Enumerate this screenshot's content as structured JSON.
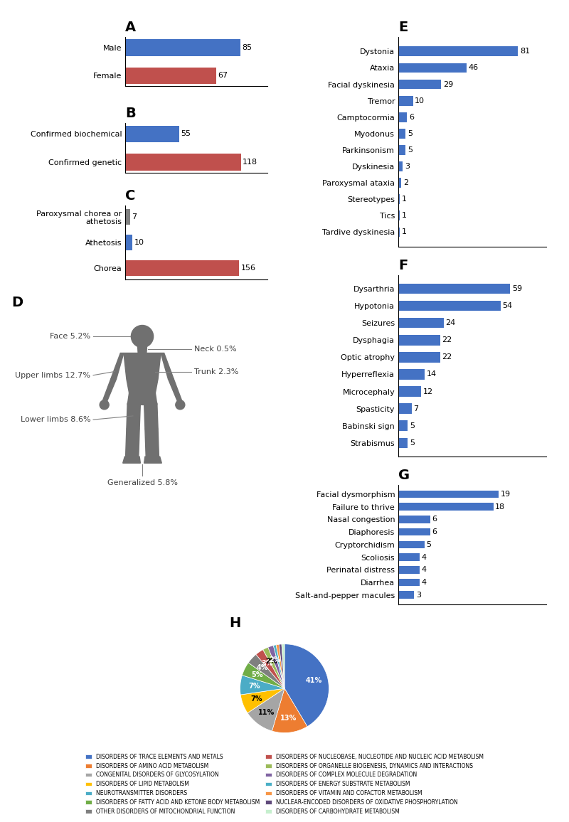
{
  "chart_data": [
    {
      "type": "bar",
      "title": "A",
      "orientation": "horizontal",
      "categories": [
        "Female",
        "Male"
      ],
      "values": [
        67,
        85
      ],
      "colors": [
        "#c0504d",
        "#4472c4"
      ],
      "xlim": [
        0,
        105
      ],
      "data_labels": true,
      "tick_labels": "y",
      "grid": false
    },
    {
      "type": "bar",
      "title": "B",
      "orientation": "horizontal",
      "categories": [
        "Confirmed genetic",
        "Confirmed biochemical"
      ],
      "values": [
        118,
        55
      ],
      "colors": [
        "#c0504d",
        "#4472c4"
      ],
      "xlim": [
        0,
        145
      ],
      "data_labels": true,
      "tick_labels": "y",
      "grid": false
    },
    {
      "type": "bar",
      "title": "C",
      "orientation": "horizontal",
      "categories": [
        "Chorea",
        "Athetosis",
        "Paroxysmal chorea or\nathetosis"
      ],
      "values": [
        156,
        10,
        7
      ],
      "colors": [
        "#c0504d",
        "#4472c4",
        "#808080"
      ],
      "xlim": [
        0,
        195
      ],
      "data_labels": true,
      "tick_labels": "y",
      "grid": false
    },
    {
      "type": "diagram",
      "title": "D",
      "color": "#707070",
      "annotations": [
        "Face 5.2%",
        "Neck 0.5%",
        "Upper limbs 12.7%",
        "Trunk 2.3%",
        "Lower limbs 8.6%",
        "Generalized 5.8%"
      ]
    },
    {
      "type": "bar",
      "title": "E",
      "orientation": "horizontal",
      "categories": [
        "Tardive dyskinesia",
        "Tics",
        "Stereotypes",
        "Paroxysmal ataxia",
        "Dyskinesia",
        "Parkinsonism",
        "Myodonus",
        "Camptocormia",
        "Tremor",
        "Facial dyskinesia",
        "Ataxia",
        "Dystonia"
      ],
      "values": [
        1,
        1,
        1,
        2,
        3,
        5,
        5,
        6,
        10,
        29,
        46,
        81
      ],
      "color": "#4472c4",
      "xlim": [
        0,
        100
      ],
      "data_labels": true,
      "tick_labels": "y",
      "grid": false
    },
    {
      "type": "bar",
      "title": "F",
      "orientation": "horizontal",
      "categories": [
        "Strabismus",
        "Babinski sign",
        "Spasticity",
        "Microcephaly",
        "Hyperreflexia",
        "Optic atrophy",
        "Dysphagia",
        "Seizures",
        "Hypotonia",
        "Dysarthria"
      ],
      "values": [
        5,
        5,
        7,
        12,
        14,
        22,
        22,
        24,
        54,
        59
      ],
      "color": "#4472c4",
      "xlim": [
        0,
        78
      ],
      "data_labels": true,
      "tick_labels": "y",
      "grid": false
    },
    {
      "type": "bar",
      "title": "G",
      "orientation": "horizontal",
      "categories": [
        "Salt-and-pepper macules",
        "Diarrhea",
        "Perinatal distress",
        "Scoliosis",
        "Cryptorchidism",
        "Diaphoresis",
        "Nasal congestion",
        "Failure to thrive",
        "Facial dysmorphism"
      ],
      "values": [
        3,
        4,
        4,
        4,
        5,
        6,
        6,
        18,
        19
      ],
      "color": "#4472c4",
      "xlim": [
        0,
        28
      ],
      "data_labels": true,
      "tick_labels": "y",
      "grid": false
    },
    {
      "type": "pie",
      "title": "H",
      "legend": "lower center",
      "categories": [
        "DISORDERS OF TRACE ELEMENTS AND METALS",
        "DISORDERS OF AMINO ACID METABOLISM",
        "CONGENITAL DISORDERS OF GLYCOSYLATION",
        "DISORDERS OF LIPID METABOLISM",
        "NEUROTRANSMITTER DISORDERS",
        "DISORDERS OF FATTY ACID AND KETONE BODY METABOLISM",
        "OTHER DISORDERS OF MITOCHONDRIAL FUNCTION",
        "DISORDERS OF NUCLEOBASE, NUCLEOTIDE AND NUCLEIC ACID METABOLISM",
        "DISORDERS OF ORGANELLE BIOGENESIS, DYNAMICS AND INTERACTIONS",
        "DISORDERS OF COMPLEX MOLECULE DEGRADATION",
        "DISORDERS OF ENERGY SUBSTRATE METABOLISM",
        "DISORDERS OF VITAMIN AND COFACTOR METABOLISM",
        "NUCLEAR-ENCODED DISORDERS OF OXIDATIVE PHOSPHORYLATION",
        "DISORDERS OF CARBOHYDRATE METABOLISM"
      ],
      "values": [
        41,
        13,
        11,
        7,
        7,
        5,
        4,
        3,
        2,
        2,
        1,
        1,
        1,
        1
      ],
      "value_labels": [
        "41%",
        "13%",
        "11%",
        "7%",
        "7%",
        "5%",
        "4%",
        "3%",
        "2%",
        "2%",
        null,
        null,
        null,
        null
      ],
      "colors": [
        "#4472c4",
        "#ed7d31",
        "#a5a5a5",
        "#ffc000",
        "#4bacc6",
        "#70ad47",
        "#7f7f7f",
        "#c0504d",
        "#9bbb59",
        "#8064a2",
        "#4aafc6",
        "#f79646",
        "#604a7b",
        "#c6efce"
      ],
      "data_labels": true
    }
  ]
}
